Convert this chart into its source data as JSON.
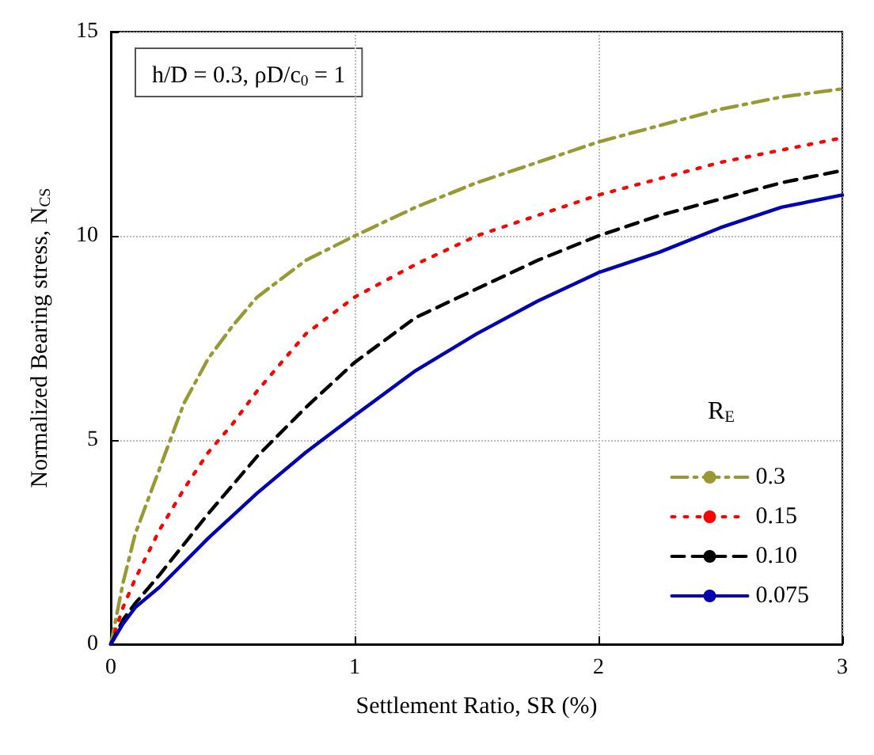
{
  "chart_data": {
    "type": "line",
    "xlabel": "Settlement Ratio, SR (%)",
    "ylabel": "Normalized Bearing stress, N$_{CS}$",
    "legend_title": "R$_{E}$",
    "annotations": [
      "h/D = 0.3, ρD/c$_{0}$ = 1"
    ],
    "xlim": [
      0,
      3
    ],
    "xticks": [
      0,
      1,
      2,
      3
    ],
    "ylim": [
      0,
      15
    ],
    "yticks": [
      0,
      5,
      10,
      15
    ],
    "grid": true,
    "legend": "bottom right",
    "marker": "none",
    "series": [
      {
        "name": "0.3",
        "color": "#999933",
        "line_style": "dashdot",
        "x": [
          0,
          0.05,
          0.1,
          0.2,
          0.3,
          0.4,
          0.5,
          0.6,
          0.8,
          1,
          1.25,
          1.5,
          1.75,
          2,
          2.25,
          2.5,
          2.75,
          3
        ],
        "values": [
          0,
          1.5,
          2.7,
          4.3,
          5.9,
          7.0,
          7.8,
          8.5,
          9.4,
          10,
          10.7,
          11.3,
          11.8,
          12.3,
          12.7,
          13.1,
          13.4,
          13.6
        ]
      },
      {
        "name": "0.15",
        "color": "#ff0000",
        "line_style": "dotted",
        "x": [
          0,
          0.05,
          0.1,
          0.2,
          0.3,
          0.4,
          0.5,
          0.6,
          0.8,
          1,
          1.25,
          1.5,
          1.75,
          2,
          2.5,
          3
        ],
        "values": [
          0,
          0.9,
          1.6,
          2.8,
          3.8,
          4.7,
          5.4,
          6.2,
          7.6,
          8.5,
          9.3,
          10,
          10.5,
          11,
          11.8,
          12.4
        ]
      },
      {
        "name": "0.10",
        "color": "#000000",
        "line_style": "dashed",
        "x": [
          0,
          0.05,
          0.1,
          0.2,
          0.4,
          0.6,
          0.8,
          1,
          1.25,
          1.5,
          1.75,
          2,
          2.25,
          2.5,
          2.75,
          3
        ],
        "values": [
          0,
          0.6,
          1.0,
          1.7,
          3.2,
          4.6,
          5.8,
          6.9,
          8.0,
          8.7,
          9.4,
          10,
          10.5,
          10.9,
          11.3,
          11.6
        ]
      },
      {
        "name": "0.075",
        "color": "#0000b0",
        "line_style": "solid",
        "x": [
          0,
          0.05,
          0.1,
          0.2,
          0.4,
          0.6,
          0.8,
          1,
          1.25,
          1.5,
          1.75,
          2,
          2.25,
          2.5,
          2.75,
          3
        ],
        "values": [
          0,
          0.5,
          0.9,
          1.4,
          2.6,
          3.7,
          4.7,
          5.6,
          6.7,
          7.6,
          8.4,
          9.1,
          9.6,
          10.2,
          10.7,
          11.0
        ]
      }
    ]
  }
}
